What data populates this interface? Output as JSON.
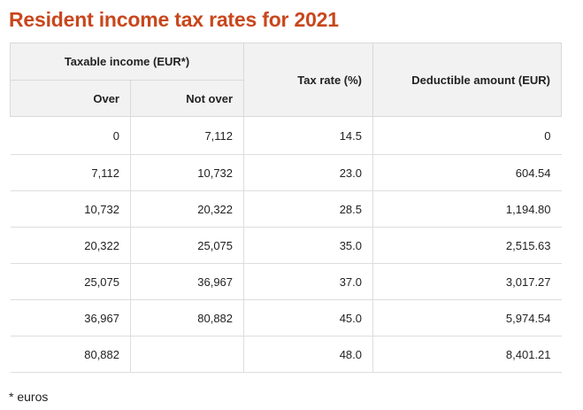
{
  "title": "Resident income tax rates for 2021",
  "table": {
    "group_header": "Taxable income (EUR*)",
    "col_over": "Over",
    "col_not_over": "Not over",
    "col_rate": "Tax rate (%)",
    "col_deductible": "Deductible amount (EUR)",
    "rows": [
      {
        "over": "0",
        "not_over": "7,112",
        "rate": "14.5",
        "deductible": "0"
      },
      {
        "over": "7,112",
        "not_over": "10,732",
        "rate": "23.0",
        "deductible": "604.54"
      },
      {
        "over": "10,732",
        "not_over": "20,322",
        "rate": "28.5",
        "deductible": "1,194.80"
      },
      {
        "over": "20,322",
        "not_over": "25,075",
        "rate": "35.0",
        "deductible": "2,515.63"
      },
      {
        "over": "25,075",
        "not_over": "36,967",
        "rate": "37.0",
        "deductible": "3,017.27"
      },
      {
        "over": "36,967",
        "not_over": "80,882",
        "rate": "45.0",
        "deductible": "5,974.54"
      },
      {
        "over": "80,882",
        "not_over": "",
        "rate": "48.0",
        "deductible": "8,401.21"
      }
    ]
  },
  "footnote": "* euros"
}
